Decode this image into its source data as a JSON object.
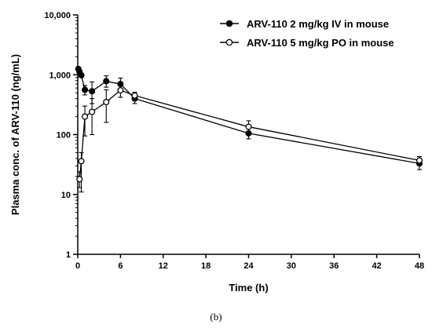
{
  "chart_data": {
    "type": "line",
    "xlabel": "Time (h)",
    "ylabel": "Plasma conc. of ARV-110 (ng/mL)",
    "xlim": [
      0,
      48
    ],
    "ylim": [
      1,
      10000
    ],
    "yscale": "log",
    "grid": false,
    "legend_position": "top-right",
    "xticks": [
      0,
      6,
      12,
      18,
      24,
      30,
      36,
      42,
      48
    ],
    "xtick_labels": [
      "0",
      "6",
      "12",
      "18",
      "24",
      "30",
      "36",
      "42",
      "48"
    ],
    "yticks": [
      1,
      10,
      100,
      1000,
      10000
    ],
    "ytick_labels": [
      "1",
      "10",
      "100",
      "1,000",
      "10,000"
    ],
    "series": [
      {
        "name": "ARV-110 2 mg/kg IV in mouse",
        "marker": "filled-circle",
        "x": [
          0.083,
          0.25,
          0.5,
          1,
          2,
          4,
          6,
          8,
          24,
          48
        ],
        "y": [
          1250,
          1120,
          980,
          560,
          530,
          780,
          700,
          400,
          105,
          33
        ],
        "err_low": [
          1200,
          1040,
          900,
          460,
          330,
          620,
          550,
          330,
          85,
          26
        ],
        "err_high": [
          1300,
          1200,
          1060,
          660,
          760,
          960,
          880,
          480,
          130,
          40
        ]
      },
      {
        "name": "ARV-110 5 mg/kg PO in mouse",
        "marker": "open-circle",
        "x": [
          0.25,
          0.5,
          1,
          2,
          4,
          6,
          8,
          24,
          48
        ],
        "y": [
          18,
          36,
          200,
          240,
          350,
          550,
          450,
          135,
          37
        ],
        "err_low": [
          13,
          11,
          95,
          100,
          160,
          420,
          390,
          110,
          32
        ],
        "err_high": [
          24,
          50,
          300,
          400,
          560,
          680,
          510,
          170,
          43
        ]
      }
    ]
  },
  "caption": "(b)"
}
